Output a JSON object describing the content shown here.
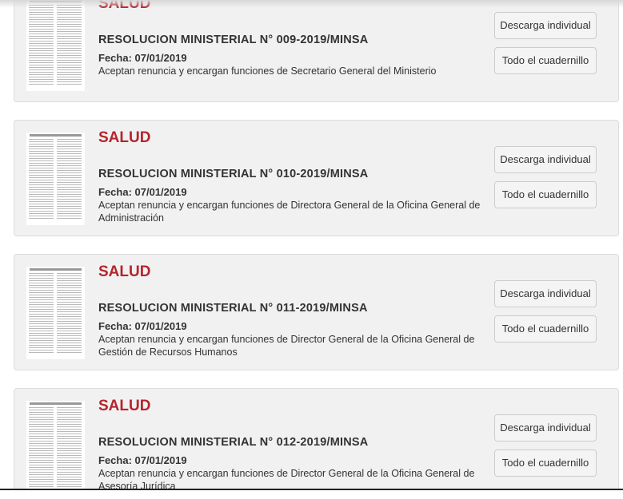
{
  "items": [
    {
      "sector": "SALUD",
      "title": "RESOLUCION MINISTERIAL N° 009-2019/MINSA",
      "date": "Fecha: 07/01/2019",
      "description": "Aceptan renuncia y encargan funciones de Secretario General del Ministerio",
      "download_label": "Descarga individual",
      "booklet_label": "Todo el cuadernillo"
    },
    {
      "sector": "SALUD",
      "title": "RESOLUCION MINISTERIAL N° 010-2019/MINSA",
      "date": "Fecha: 07/01/2019",
      "description": "Aceptan renuncia y encargan funciones de Directora General de la Oficina General de Administración",
      "download_label": "Descarga individual",
      "booklet_label": "Todo el cuadernillo"
    },
    {
      "sector": "SALUD",
      "title": "RESOLUCION MINISTERIAL N° 011-2019/MINSA",
      "date": "Fecha: 07/01/2019",
      "description": "Aceptan renuncia y encargan funciones de Director General de la Oficina General de Gestión de Recursos Humanos",
      "download_label": "Descarga individual",
      "booklet_label": "Todo el cuadernillo"
    },
    {
      "sector": "SALUD",
      "title": "RESOLUCION MINISTERIAL N° 012-2019/MINSA",
      "date": "Fecha: 07/01/2019",
      "description": "Aceptan renuncia y encargan funciones de Director General de la Oficina General de Asesoría Jurídica",
      "download_label": "Descarga individual",
      "booklet_label": "Todo el cuadernillo"
    }
  ],
  "colors": {
    "sector": "#b5242c",
    "card_bg": "#f1f1f1"
  }
}
